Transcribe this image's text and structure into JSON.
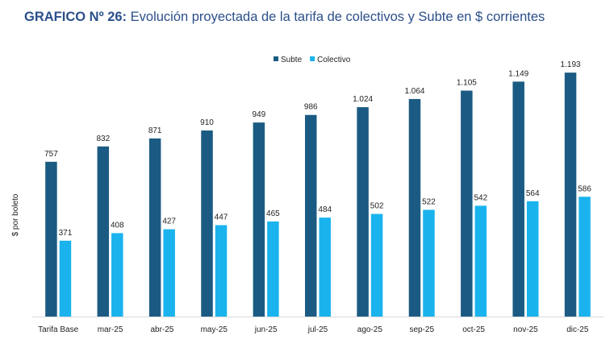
{
  "title": {
    "prefix": "GRAFICO Nº 26:",
    "text": " Evolución proyectada de la tarifa de colectivos y Subte en $ corrientes"
  },
  "chart_data": {
    "type": "bar",
    "ylabel": "$ por boleto",
    "xlabel": "",
    "ylim": [
      0,
      1300
    ],
    "grid": false,
    "legend_position": "top-center",
    "categories": [
      "Tarifa Base",
      "mar-25",
      "abr-25",
      "may-25",
      "jun-25",
      "jul-25",
      "ago-25",
      "sep-25",
      "oct-25",
      "nov-25",
      "dic-25"
    ],
    "series": [
      {
        "name": "Subte",
        "color": "#1b5b83",
        "values": [
          757,
          832,
          871,
          910,
          949,
          986,
          1024,
          1064,
          1105,
          1149,
          1193
        ],
        "labels": [
          "757",
          "832",
          "871",
          "910",
          "949",
          "986",
          "1.024",
          "1.064",
          "1.105",
          "1.149",
          "1.193"
        ]
      },
      {
        "name": "Colectivo",
        "color": "#1ab3ee",
        "values": [
          371,
          408,
          427,
          447,
          465,
          484,
          502,
          522,
          542,
          564,
          586
        ],
        "labels": [
          "371",
          "408",
          "427",
          "447",
          "465",
          "484",
          "502",
          "522",
          "542",
          "564",
          "586"
        ]
      }
    ]
  }
}
